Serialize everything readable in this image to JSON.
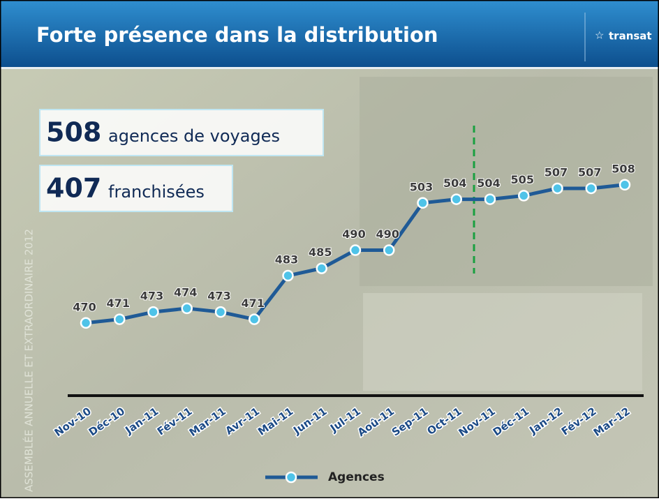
{
  "header": {
    "title": "Forte présence dans la distribution",
    "logo": "transat"
  },
  "callouts": [
    {
      "number": 508,
      "text": "agences de voyages"
    },
    {
      "number": 407,
      "text": "franchisées"
    }
  ],
  "watermark": "ASSEMBLÉE ANNUELLE ET EXTRAORDINAIRE 2012",
  "chart_data": {
    "type": "line",
    "categories": [
      "Nov-10",
      "Déc-10",
      "Jan-11",
      "Fév-11",
      "Mar-11",
      "Avr-11",
      "Mai-11",
      "Jun-11",
      "Jul-11",
      "Aoû-11",
      "Sep-11",
      "Oct-11",
      "Nov-11",
      "Déc-11",
      "Jan-12",
      "Fév-12",
      "Mar-12"
    ],
    "series": [
      {
        "name": "Agences",
        "color": "#1f5a96",
        "marker_color": "#4fc3e8",
        "values": [
          470,
          471,
          473,
          474,
          473,
          471,
          483,
          485,
          490,
          490,
          503,
          504,
          504,
          505,
          507,
          507,
          508
        ]
      }
    ],
    "ylim": [
      450,
      540
    ],
    "grid": false
  }
}
